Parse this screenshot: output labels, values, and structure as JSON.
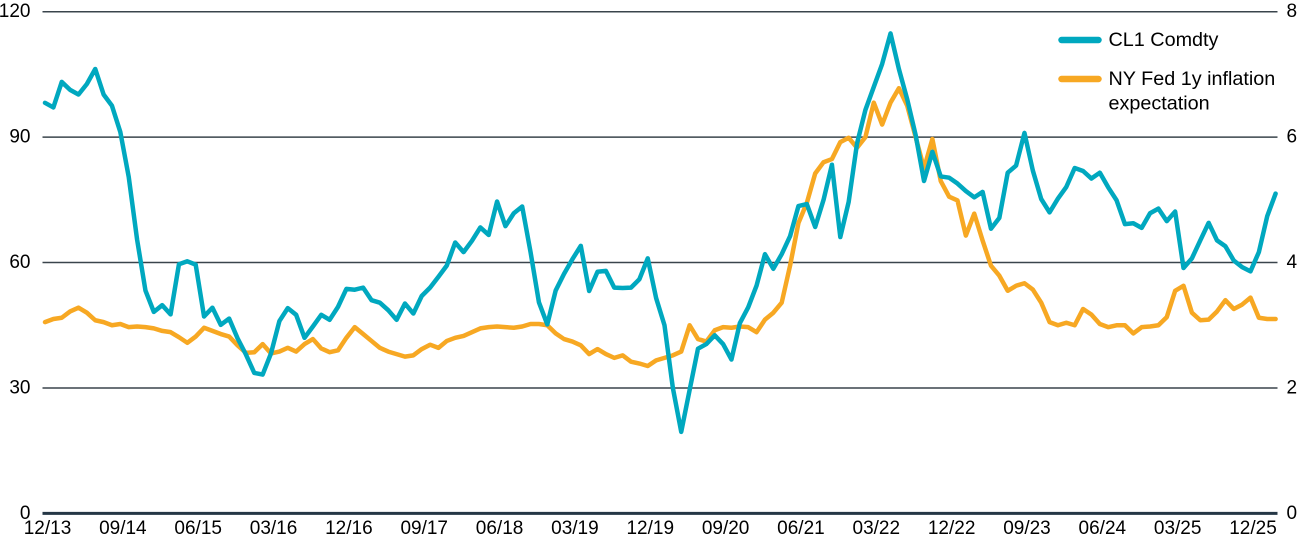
{
  "chart_data": {
    "type": "line",
    "title": "",
    "frequency": "monthly",
    "x_start": "2013-12",
    "x_end": "2026-03",
    "x_tick_labels": [
      "12/13",
      "09/14",
      "06/15",
      "03/16",
      "12/16",
      "09/17",
      "06/18",
      "03/19",
      "12/19",
      "09/20",
      "06/21",
      "03/22",
      "12/22",
      "09/23",
      "06/24",
      "03/25",
      "12/25"
    ],
    "left_axis": {
      "ticks": [
        0,
        30,
        60,
        90,
        120
      ],
      "range": [
        0,
        120
      ]
    },
    "right_axis": {
      "ticks": [
        0,
        2,
        4,
        6,
        8
      ],
      "range": [
        0,
        8
      ]
    },
    "grid": "horizontal",
    "legend_position": "top-right",
    "colors": {
      "grid": "#3a444c",
      "axis_line": "#253746",
      "text": "#000000",
      "background": "#ffffff"
    },
    "series": [
      {
        "name": "NY Fed 1y inflation expectation",
        "legend_lines": [
          "NY Fed 1y inflation",
          "expectation"
        ],
        "axis": "right",
        "color": "#f7a823",
        "values": [
          3.05,
          3.1,
          3.12,
          3.22,
          3.28,
          3.2,
          3.08,
          3.05,
          3.0,
          3.02,
          2.97,
          2.98,
          2.97,
          2.95,
          2.91,
          2.89,
          2.81,
          2.72,
          2.82,
          2.96,
          2.91,
          2.86,
          2.82,
          2.68,
          2.56,
          2.57,
          2.7,
          2.55,
          2.58,
          2.64,
          2.58,
          2.7,
          2.78,
          2.63,
          2.57,
          2.6,
          2.8,
          2.97,
          2.86,
          2.75,
          2.64,
          2.58,
          2.54,
          2.5,
          2.52,
          2.62,
          2.69,
          2.64,
          2.75,
          2.8,
          2.83,
          2.89,
          2.95,
          2.97,
          2.98,
          2.97,
          2.96,
          2.98,
          3.02,
          3.02,
          3.0,
          2.87,
          2.78,
          2.74,
          2.68,
          2.54,
          2.62,
          2.54,
          2.48,
          2.52,
          2.42,
          2.39,
          2.35,
          2.44,
          2.48,
          2.52,
          2.58,
          3.0,
          2.78,
          2.74,
          2.92,
          2.97,
          2.96,
          2.98,
          2.97,
          2.89,
          3.09,
          3.2,
          3.36,
          3.95,
          4.63,
          4.95,
          5.42,
          5.6,
          5.65,
          5.92,
          5.99,
          5.83,
          6.0,
          6.55,
          6.2,
          6.55,
          6.78,
          6.5,
          6.0,
          5.5,
          5.97,
          5.3,
          5.05,
          4.99,
          4.43,
          4.78,
          4.35,
          3.95,
          3.79,
          3.55,
          3.63,
          3.67,
          3.57,
          3.36,
          3.05,
          3.0,
          3.04,
          3.0,
          3.26,
          3.17,
          3.02,
          2.97,
          3.0,
          3.0,
          2.87,
          2.97,
          2.98,
          3.0,
          3.13,
          3.55,
          3.63,
          3.2,
          3.08,
          3.09,
          3.22,
          3.4,
          3.26,
          3.33,
          3.44,
          3.12,
          3.1,
          3.1
        ]
      },
      {
        "name": "CL1 Comdty",
        "legend_lines": [
          "CL1 Comdty"
        ],
        "axis": "left",
        "color": "#00a8bf",
        "values": [
          98.2,
          97.1,
          103.2,
          101.3,
          100.2,
          102.7,
          106.3,
          100.2,
          97.5,
          91.2,
          80.5,
          65.5,
          53.3,
          48.2,
          49.8,
          47.6,
          59.6,
          60.3,
          59.5,
          47.1,
          49.2,
          45.1,
          46.6,
          41.9,
          38.0,
          33.6,
          33.2,
          38.3,
          46.0,
          49.1,
          47.5,
          42.0,
          44.7,
          47.5,
          46.3,
          49.4,
          53.7,
          53.5,
          54.0,
          51.0,
          50.4,
          48.6,
          46.3,
          50.2,
          47.8,
          52.0,
          54.0,
          56.6,
          59.3,
          64.8,
          62.5,
          65.2,
          68.4,
          66.6,
          74.6,
          68.7,
          71.8,
          73.4,
          62.5,
          50.5,
          45.2,
          53.3,
          57.3,
          60.8,
          64.0,
          53.2,
          57.8,
          58.0,
          54.0,
          53.9,
          54.0,
          56.0,
          61.0,
          51.5,
          45.0,
          30.0,
          19.5,
          29.5,
          39.4,
          40.5,
          42.6,
          40.5,
          36.8,
          45.5,
          49.3,
          54.5,
          62.0,
          58.5,
          62.0,
          66.3,
          73.5,
          74.0,
          68.5,
          75.0,
          83.4,
          66.1,
          74.5,
          88.5,
          96.5,
          102.0,
          107.5,
          114.8,
          106.3,
          99.0,
          90.5,
          79.5,
          86.5,
          80.6,
          80.3,
          78.9,
          77.1,
          75.6,
          76.9,
          68.1,
          70.7,
          81.5,
          83.2,
          91.0,
          82.0,
          75.2,
          72.0,
          75.3,
          78.1,
          82.6,
          81.9,
          80.1,
          81.5,
          78.0,
          74.9,
          69.2,
          69.4,
          68.3,
          71.8,
          72.9,
          69.9,
          72.2,
          58.7,
          61.0,
          65.3,
          69.5,
          65.3,
          63.9,
          60.5,
          58.9,
          57.9,
          62.5,
          71.1,
          76.5
        ]
      }
    ]
  }
}
